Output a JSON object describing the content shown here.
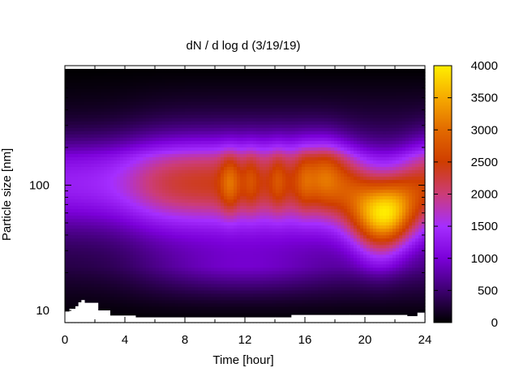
{
  "chart_data": {
    "type": "heatmap",
    "title": "dN / d log d (3/19/19)",
    "xlabel": "Time [hour]",
    "ylabel": "Particle size [nm]",
    "xlim": [
      0,
      24
    ],
    "ylim_log": [
      8,
      900
    ],
    "y_scale": "log",
    "x_ticks": [
      "0",
      "4",
      "8",
      "12",
      "16",
      "20",
      "24"
    ],
    "y_ticks": [
      "10",
      "100"
    ],
    "colorbar": {
      "min": 0,
      "max": 4000,
      "ticks": [
        "0",
        "500",
        "1000",
        "1500",
        "2000",
        "2500",
        "3000",
        "3500",
        "4000"
      ],
      "colors": [
        "#000000",
        "#3d0070",
        "#7b00d9",
        "#a52eff",
        "#cc3c78",
        "#cf3d00",
        "#e26a00",
        "#f6aa00",
        "#ffef00"
      ]
    },
    "lower_size_limit_nm": [
      [
        0,
        9.8
      ],
      [
        0.3,
        10.3
      ],
      [
        0.7,
        10.8
      ],
      [
        0.9,
        11.6
      ],
      [
        1.1,
        12.1
      ],
      [
        1.3,
        11.5
      ],
      [
        2.2,
        10.0
      ],
      [
        3.0,
        9.1
      ],
      [
        4.7,
        8.8
      ],
      [
        14,
        8.8
      ],
      [
        15.1,
        9.2
      ],
      [
        19,
        9.2
      ],
      [
        22.8,
        9.0
      ],
      [
        23.5,
        9.6
      ],
      [
        24,
        9.6
      ]
    ],
    "features": [
      {
        "time_h": 0,
        "size_nm": 100,
        "value": 2000
      },
      {
        "time_h": 11,
        "size_nm": 100,
        "value": 3000
      },
      {
        "time_h": 21,
        "size_nm": 60,
        "value": 3900
      },
      {
        "time_h": 17,
        "size_nm": 130,
        "value": 2700
      },
      {
        "time_h": 12,
        "size_nm": 20,
        "value": 900
      }
    ]
  }
}
